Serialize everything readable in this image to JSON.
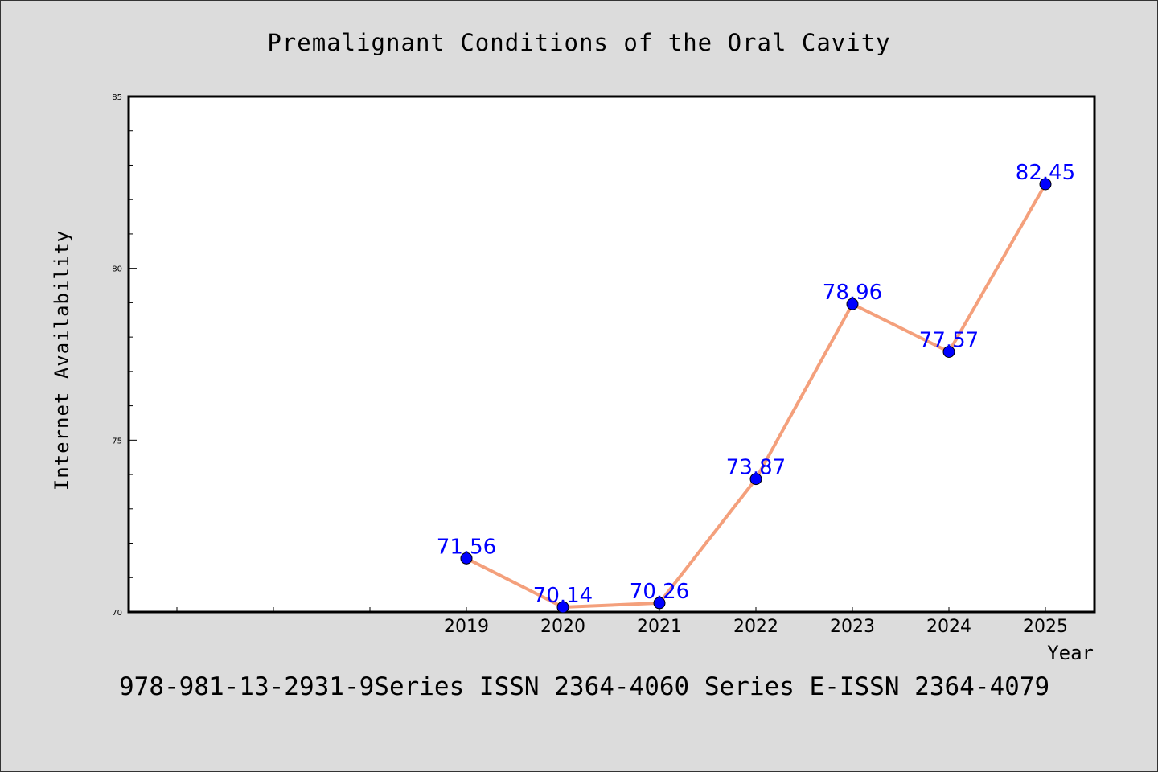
{
  "chart_data": {
    "type": "line",
    "title": "Premalignant Conditions of the Oral Cavity",
    "xlabel": "Year",
    "ylabel": "Internet Availability",
    "categories": [
      "2019",
      "2020",
      "2021",
      "2022",
      "2023",
      "2024",
      "2025"
    ],
    "series": [
      {
        "values": [
          71.56,
          70.14,
          70.26,
          73.87,
          78.96,
          77.57,
          82.45
        ],
        "labels": [
          "71.56",
          "70.14",
          "70.26",
          "73.87",
          "78.96",
          "77.57",
          "82.45"
        ],
        "line_color": "#f4a07c",
        "marker_color": "#0000ff"
      }
    ],
    "ylim": [
      70,
      85
    ],
    "y_ticks": [
      "70",
      "75",
      "80",
      "85"
    ],
    "data_label_color": "#0000ff",
    "grid": false,
    "legend": "none",
    "footer": "978-981-13-2931-9Series ISSN 2364-4060 Series E-ISSN 2364-4079"
  }
}
